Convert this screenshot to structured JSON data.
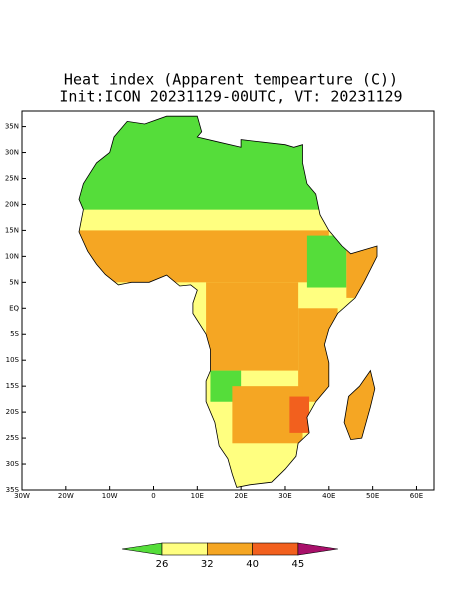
{
  "chart_data": {
    "type": "map",
    "title": "Heat index (Apparent tempearture (C))",
    "subtitle": "Init:ICON 20231129-00UTC, VT: 20231129",
    "xlim": [
      -30,
      64
    ],
    "ylim": [
      -35,
      38
    ],
    "xticks": [
      {
        "value": -30,
        "label": "30W"
      },
      {
        "value": -20,
        "label": "20W"
      },
      {
        "value": -10,
        "label": "10W"
      },
      0,
      {
        "value": 10,
        "label": "10E"
      },
      {
        "value": 20,
        "label": "20E"
      },
      {
        "value": 30,
        "label": "30E"
      },
      {
        "value": 40,
        "label": "40E"
      },
      {
        "value": 50,
        "label": "50E"
      },
      {
        "value": 60,
        "label": "60E"
      }
    ],
    "yticks": [
      {
        "value": 35,
        "label": "35N"
      },
      {
        "value": 30,
        "label": "30N"
      },
      {
        "value": 25,
        "label": "25N"
      },
      {
        "value": 20,
        "label": "20N"
      },
      {
        "value": 15,
        "label": "15N"
      },
      {
        "value": 10,
        "label": "10N"
      },
      {
        "value": 5,
        "label": "5N"
      },
      {
        "value": 0,
        "label": "EQ"
      },
      {
        "value": -5,
        "label": "5S"
      },
      {
        "value": -10,
        "label": "10S"
      },
      {
        "value": -15,
        "label": "15S"
      },
      {
        "value": -20,
        "label": "20S"
      },
      {
        "value": -25,
        "label": "25S"
      },
      {
        "value": -30,
        "label": "30S"
      },
      {
        "value": -35,
        "label": "35S"
      }
    ],
    "colorbar": {
      "levels": [
        26,
        32,
        40,
        45
      ],
      "colors": [
        "#55dd3a",
        "#ffff80",
        "#f5a623",
        "#f2601e",
        "#a8106a"
      ]
    }
  }
}
